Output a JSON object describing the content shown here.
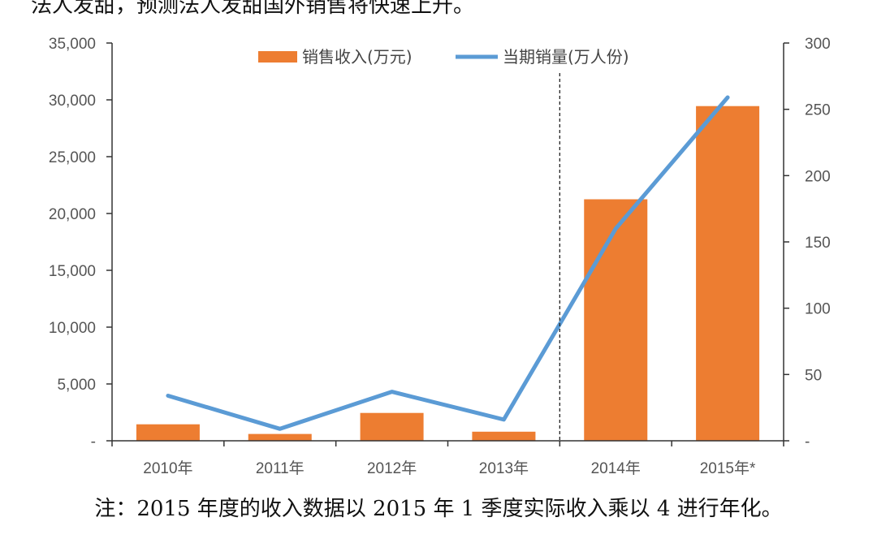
{
  "header_text": "法人发甜，预测法人发甜国外销售将快速上升。",
  "footnote": "注：2015 年度的收入数据以 2015 年 1 季度实际收入乘以 4 进行年化。",
  "chart_data": {
    "type": "bar",
    "categories": [
      "2010年",
      "2011年",
      "2012年",
      "2013年",
      "2014年",
      "2015年*"
    ],
    "series": [
      {
        "name": "销售收入(万元)",
        "type": "bar",
        "axis": "left",
        "color": "#ED7D31",
        "values": [
          1450,
          600,
          2450,
          800,
          21250,
          29450
        ]
      },
      {
        "name": "当期销量(万人份)",
        "type": "line",
        "axis": "right",
        "color": "#5B9BD5",
        "values": [
          34,
          9,
          37,
          16,
          160,
          259
        ]
      }
    ],
    "y_left": {
      "min": 0,
      "max": 35000,
      "ticks": [
        0,
        5000,
        10000,
        15000,
        20000,
        25000,
        30000,
        35000
      ],
      "tick_labels": [
        "-",
        "5,000",
        "10,000",
        "15,000",
        "20,000",
        "25,000",
        "30,000",
        "35,000"
      ]
    },
    "y_right": {
      "min": 0,
      "max": 300,
      "ticks": [
        0,
        50,
        100,
        150,
        200,
        250,
        300
      ],
      "tick_labels": [
        "-",
        "50",
        "100",
        "150",
        "200",
        "250",
        "300"
      ]
    },
    "divider": "dashed vertical line between 2013年 and 2014年",
    "grid": false,
    "legend_position": "top-center"
  }
}
